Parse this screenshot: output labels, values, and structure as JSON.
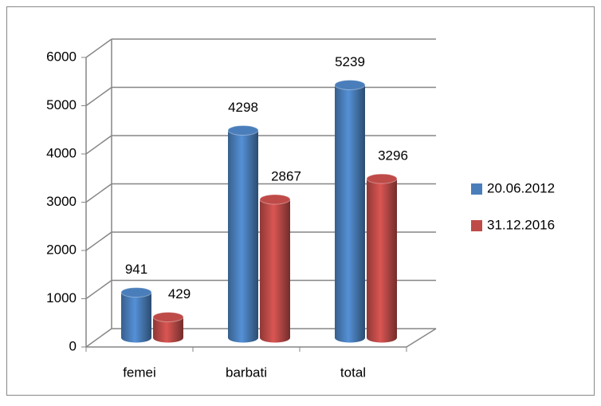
{
  "chart_data": {
    "type": "bar3d",
    "categories": [
      "femei",
      "barbati",
      "total"
    ],
    "series": [
      {
        "name": "20.06.2012",
        "color": "#4a7ebb",
        "values": [
          941,
          4298,
          5239
        ]
      },
      {
        "name": "31.12.2016",
        "color": "#be4b48",
        "values": [
          429,
          2867,
          3296
        ]
      }
    ],
    "ylim": [
      0,
      6000
    ],
    "yticks": [
      0,
      1000,
      2000,
      3000,
      4000,
      5000,
      6000
    ],
    "grid": true,
    "legend": "right"
  }
}
